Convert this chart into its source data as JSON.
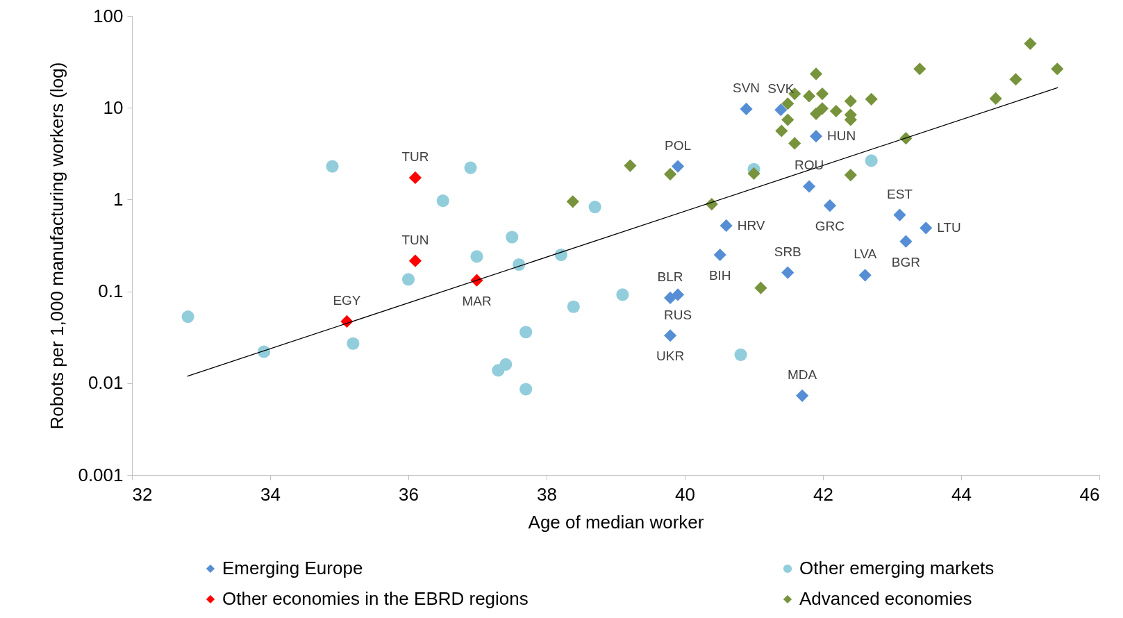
{
  "chart_data": {
    "type": "scatter",
    "xlabel": "Age of median worker",
    "ylabel": "Robots per 1,000 manufacturing workers (log)",
    "xlim": [
      32,
      46
    ],
    "xticks": [
      32,
      34,
      36,
      38,
      40,
      42,
      44,
      46
    ],
    "ylim": [
      0.001,
      100
    ],
    "yticks": [
      0.001,
      0.01,
      0.1,
      1,
      10,
      100
    ],
    "log": true,
    "legend": "bottom",
    "series": [
      {
        "name": "Emerging Europe",
        "color": "#558ed5",
        "marker": "diamond",
        "x": [
          40.89,
          41.39,
          39.9,
          41.9,
          41.8,
          42.1,
          40.6,
          40.51,
          41.49,
          43.11,
          43.49,
          43.2,
          42.61,
          39.79,
          39.9,
          39.79,
          41.7
        ],
        "values": [
          9.7,
          9.5,
          2.3,
          4.9,
          1.39,
          0.86,
          0.52,
          0.25,
          0.16,
          0.68,
          0.49,
          0.35,
          0.15,
          0.085,
          0.092,
          0.033,
          0.0073
        ]
      },
      {
        "name": "Other economies in the EBRD regions",
        "color": "#ff0000",
        "marker": "diamond",
        "x": [
          36.1,
          36.1,
          36.99,
          35.11
        ],
        "values": [
          1.73,
          0.215,
          0.132,
          0.047
        ]
      },
      {
        "name": "Other emerging markets",
        "color": "#92cddc",
        "marker": "circle",
        "x": [
          32.81,
          33.91,
          34.9,
          35.2,
          36.0,
          36.5,
          36.9,
          36.99,
          37.5,
          37.6,
          38.21,
          38.7,
          39.1,
          38.39,
          37.7,
          37.41,
          37.3,
          37.7,
          40.81,
          41.0,
          42.7
        ],
        "values": [
          0.053,
          0.022,
          2.3,
          0.027,
          0.135,
          0.97,
          2.22,
          0.24,
          0.39,
          0.196,
          0.25,
          0.83,
          0.092,
          0.068,
          0.036,
          0.016,
          0.0138,
          0.0086,
          0.0204,
          2.14,
          2.65
        ]
      },
      {
        "name": "Advanced economies",
        "color": "#77933c",
        "marker": "diamond",
        "x": [
          39.21,
          38.38,
          39.79,
          40.39,
          41.0,
          41.1,
          42.4,
          43.2,
          41.9,
          41.59,
          41.8,
          41.99,
          41.49,
          41.9,
          41.99,
          42.19,
          42.4,
          42.4,
          42.4,
          42.7,
          41.49,
          41.4,
          41.59,
          43.4,
          45.0,
          44.79,
          45.39,
          44.5
        ],
        "values": [
          2.34,
          0.95,
          1.89,
          0.89,
          1.92,
          0.109,
          1.85,
          4.65,
          23.4,
          14.2,
          13.4,
          14.2,
          11.1,
          8.6,
          9.8,
          9.2,
          11.8,
          8.4,
          7.4,
          12.4,
          7.4,
          5.6,
          4.1,
          26.5,
          50,
          20.4,
          26.5,
          12.6
        ]
      },
      {
        "type": "line",
        "color": "#000000",
        "x": [
          32.8,
          45.4
        ],
        "values": [
          0.0119,
          16.6
        ]
      }
    ],
    "annotations": [
      {
        "text": "SVN",
        "x": 40.89,
        "y": 9.7
      },
      {
        "text": "SVK",
        "x": 41.39,
        "y": 9.5
      },
      {
        "text": "POL",
        "x": 39.9,
        "y": 2.3
      },
      {
        "text": "HUN",
        "x": 41.9,
        "y": 4.9
      },
      {
        "text": "ROU",
        "x": 41.8,
        "y": 1.39
      },
      {
        "text": "TUR",
        "x": 36.1,
        "y": 1.73
      },
      {
        "text": "HRV",
        "x": 40.6,
        "y": 0.52
      },
      {
        "text": "EST",
        "x": 43.11,
        "y": 0.68
      },
      {
        "text": "LTU",
        "x": 43.49,
        "y": 0.49
      },
      {
        "text": "GRC",
        "x": 42.1,
        "y": 0.86
      },
      {
        "text": "BIH",
        "x": 40.51,
        "y": 0.25
      },
      {
        "text": "TUN",
        "x": 36.1,
        "y": 0.215
      },
      {
        "text": "MAR",
        "x": 36.99,
        "y": 0.132
      },
      {
        "text": "SRB",
        "x": 41.49,
        "y": 0.16
      },
      {
        "text": "BGR",
        "x": 43.2,
        "y": 0.35
      },
      {
        "text": "BLR",
        "x": 39.79,
        "y": 0.085
      },
      {
        "text": "RUS",
        "x": 39.9,
        "y": 0.092
      },
      {
        "text": "EGY",
        "x": 35.11,
        "y": 0.047
      },
      {
        "text": "LVA",
        "x": 42.61,
        "y": 0.15
      },
      {
        "text": "UKR",
        "x": 39.79,
        "y": 0.033
      },
      {
        "text": "MDA",
        "x": 41.7,
        "y": 0.0073
      }
    ]
  }
}
